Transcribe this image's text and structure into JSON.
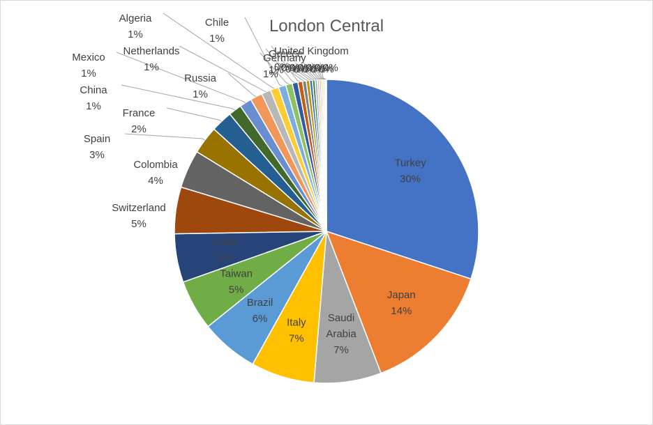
{
  "chart_data": {
    "type": "pie",
    "title": "London Central",
    "start_angle_deg": 0,
    "direction": "clockwise",
    "slices": [
      {
        "label": "Turkey",
        "value": 30.3,
        "pct": "30%",
        "color": "#4472c4",
        "label_pos": "inside",
        "label_lines": [
          "Turkey",
          "30%"
        ]
      },
      {
        "label": "Japan",
        "value": 14.2,
        "pct": "14%",
        "color": "#ed7d31",
        "label_pos": "inside",
        "label_lines": [
          "Japan",
          "14%"
        ]
      },
      {
        "label": "Saudi Arabia",
        "value": 7.2,
        "pct": "7%",
        "color": "#a5a5a5",
        "label_pos": "inside",
        "label_lines": [
          "Saudi",
          "Arabia",
          "7%"
        ]
      },
      {
        "label": "Italy",
        "value": 6.8,
        "pct": "7%",
        "color": "#ffc000",
        "label_pos": "inside",
        "label_lines": [
          "Italy",
          "7%"
        ]
      },
      {
        "label": "Brazil",
        "value": 6.2,
        "pct": "6%",
        "color": "#5b9bd5",
        "label_pos": "inside",
        "label_lines": [
          "Brazil",
          "6%"
        ]
      },
      {
        "label": "Taiwan",
        "value": 5.4,
        "pct": "5%",
        "color": "#70ad47",
        "label_pos": "inside",
        "label_lines": [
          "Taiwan",
          "5%"
        ]
      },
      {
        "label": "India",
        "value": 5.2,
        "pct": "5%",
        "color": "#264478",
        "label_pos": "inside",
        "label_lines": [
          "India",
          "5%"
        ]
      },
      {
        "label": "Switzerland",
        "value": 5.0,
        "pct": "5%",
        "color": "#9e480e",
        "label_pos": "outside",
        "label_lines": [
          "Switzerland",
          "5%"
        ]
      },
      {
        "label": "Colombia",
        "value": 4.1,
        "pct": "4%",
        "color": "#636363",
        "label_pos": "outside",
        "label_lines": [
          "Colombia",
          "4%"
        ]
      },
      {
        "label": "Spain",
        "value": 3.0,
        "pct": "3%",
        "color": "#997300",
        "label_pos": "outside",
        "label_lines": [
          "Spain",
          "3%"
        ]
      },
      {
        "label": "France",
        "value": 2.3,
        "pct": "2%",
        "color": "#255e91",
        "label_pos": "outside",
        "label_lines": [
          "France",
          "2%"
        ]
      },
      {
        "label": "China",
        "value": 1.4,
        "pct": "1%",
        "color": "#43682b",
        "label_pos": "outside",
        "label_lines": [
          "China",
          "1%"
        ]
      },
      {
        "label": "Mexico",
        "value": 1.3,
        "pct": "1%",
        "color": "#698ed0",
        "label_pos": "outside",
        "label_lines": [
          "Mexico",
          "1%"
        ]
      },
      {
        "label": "Russia",
        "value": 1.3,
        "pct": "1%",
        "color": "#f1975a",
        "label_pos": "outside",
        "label_lines": [
          "Russia",
          "1%"
        ]
      },
      {
        "label": "Netherlands",
        "value": 1.0,
        "pct": "1%",
        "color": "#b7b7b7",
        "label_pos": "outside",
        "label_lines": [
          "Netherlands",
          "1%"
        ]
      },
      {
        "label": "Algeria",
        "value": 0.9,
        "pct": "1%",
        "color": "#ffcd33",
        "label_pos": "outside",
        "label_lines": [
          "Algeria",
          "1%"
        ]
      },
      {
        "label": "Chile",
        "value": 0.8,
        "pct": "1%",
        "color": "#7cafdd",
        "label_pos": "outside",
        "label_lines": [
          "Chile",
          "1%"
        ]
      },
      {
        "label": "Germany",
        "value": 0.7,
        "pct": "1%",
        "color": "#8cc168",
        "label_pos": "outside",
        "label_lines": [
          "Germany",
          "1%"
        ]
      },
      {
        "label": "Greece",
        "value": 0.6,
        "pct": "1%",
        "color": "#335aa1",
        "label_pos": "outside",
        "label_lines": [
          "Greece",
          "1%"
        ]
      },
      {
        "label": "United Kingdom",
        "value": 0.5,
        "pct": "0%",
        "color": "#c55a11",
        "label_pos": "outside",
        "label_lines": [
          "United Kingdom",
          "0%"
        ]
      },
      {
        "label": "",
        "value": 0.4,
        "pct": "0%",
        "color": "#7f7f7f",
        "label_pos": "outside",
        "label_lines": [
          "0%"
        ]
      },
      {
        "label": "",
        "value": 0.35,
        "pct": "0%",
        "color": "#bf9000",
        "label_pos": "outside",
        "label_lines": [
          "0%"
        ]
      },
      {
        "label": "",
        "value": 0.3,
        "pct": "0%",
        "color": "#2e75b6",
        "label_pos": "outside",
        "label_lines": [
          "0%"
        ]
      },
      {
        "label": "",
        "value": 0.28,
        "pct": "0%",
        "color": "#548235",
        "label_pos": "outside",
        "label_lines": [
          "0%"
        ]
      },
      {
        "label": "",
        "value": 0.25,
        "pct": "0%",
        "color": "#8faadc",
        "label_pos": "outside",
        "label_lines": [
          "0%"
        ]
      },
      {
        "label": "",
        "value": 0.22,
        "pct": "0%",
        "color": "#f4b183",
        "label_pos": "outside",
        "label_lines": [
          "0%"
        ]
      },
      {
        "label": "",
        "value": 0.2,
        "pct": "0%",
        "color": "#c9c9c9",
        "label_pos": "outside",
        "label_lines": [
          "0%"
        ]
      },
      {
        "label": "",
        "value": 0.18,
        "pct": "0%",
        "color": "#ffd966",
        "label_pos": "outside",
        "label_lines": [
          "0%"
        ]
      },
      {
        "label": "",
        "value": 0.15,
        "pct": "0%",
        "color": "#9dc3e6",
        "label_pos": "outside",
        "label_lines": [
          "0%"
        ]
      },
      {
        "label": "",
        "value": 0.12,
        "pct": "0%",
        "color": "#a9d18e",
        "label_pos": "outside",
        "label_lines": [
          "0%"
        ]
      },
      {
        "label": "",
        "value": 0.1,
        "pct": "0%",
        "color": "#1f3864",
        "label_pos": "outside",
        "label_lines": [
          "0%"
        ]
      }
    ],
    "legend": "none",
    "data_labels": "category and percentage"
  }
}
